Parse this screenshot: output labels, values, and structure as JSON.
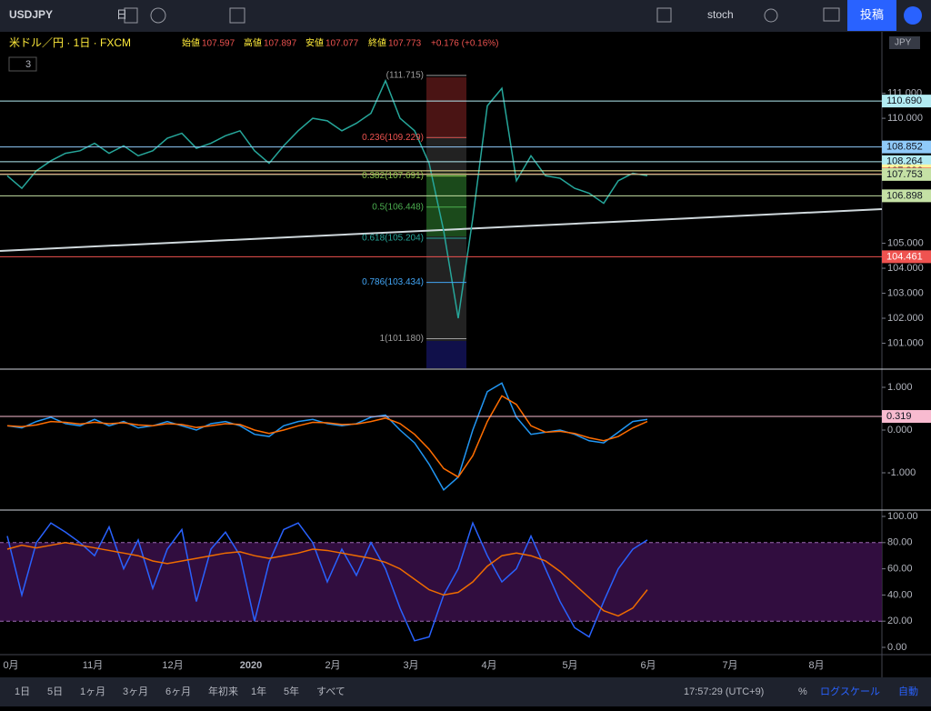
{
  "toolbar": {
    "symbol": "USDJPY",
    "interval": "日",
    "indicator": "stoch",
    "publish": "投稿"
  },
  "legend": {
    "title": "米ドル／円 · 1日 · FXCM",
    "open_label": "始値",
    "open": "107.597",
    "high_label": "高値",
    "high": "107.897",
    "low_label": "安値",
    "low": "107.077",
    "close_label": "終値",
    "close": "107.773",
    "change": "+0.176 (+0.16%)",
    "count": "3",
    "currency": "JPY"
  },
  "price_pane": {
    "ylim": [
      100,
      113.35
    ],
    "yticks": [
      {
        "value": 101,
        "label": "101.000"
      },
      {
        "value": 102,
        "label": "102.000"
      },
      {
        "value": 103,
        "label": "103.000"
      },
      {
        "value": 104,
        "label": "104.000"
      },
      {
        "value": 105,
        "label": "105.000"
      },
      {
        "value": 110,
        "label": "110.000"
      },
      {
        "value": 111,
        "label": "111.000"
      }
    ],
    "price_labels": [
      {
        "value": 110.69,
        "label": "110.690",
        "color": "#b2ebf2"
      },
      {
        "value": 108.852,
        "label": "108.852",
        "color": "#90caf9"
      },
      {
        "value": 108.264,
        "label": "108.264",
        "color": "#b2ebf2"
      },
      {
        "value": 107.896,
        "label": "107.896",
        "color": "#fff59d"
      },
      {
        "value": 107.773,
        "label": "107.773",
        "color": "#ef5350"
      },
      {
        "value": 107.753,
        "label": "107.753",
        "color": "#c5e1a5"
      },
      {
        "value": 106.898,
        "label": "106.898",
        "color": "#c5e1a5"
      },
      {
        "value": 104.461,
        "label": "104.461",
        "color": "#ef5350"
      }
    ],
    "fib": [
      {
        "value": 111.715,
        "label": "(111.715)",
        "color": "#9e9e9e"
      },
      {
        "value": 109.229,
        "label": "0.236(109.229)",
        "color": "#ef5350"
      },
      {
        "value": 107.691,
        "label": "0.382(107.691)",
        "color": "#8bc34a"
      },
      {
        "value": 106.448,
        "label": "0.5(106.448)",
        "color": "#4caf50"
      },
      {
        "value": 105.204,
        "label": "0.618(105.204)",
        "color": "#26a69a"
      },
      {
        "value": 103.434,
        "label": "0.786(103.434)",
        "color": "#42a5f5"
      },
      {
        "value": 101.18,
        "label": "1(101.180)",
        "color": "#9e9e9e"
      }
    ],
    "series": [
      {
        "name": "USDJPY",
        "color": "#26a69a",
        "values": [
          107.7,
          107.2,
          107.9,
          108.3,
          108.6,
          108.7,
          109.0,
          108.6,
          108.9,
          108.5,
          108.7,
          109.2,
          109.4,
          108.8,
          109.0,
          109.3,
          109.5,
          108.7,
          108.2,
          108.9,
          109.5,
          110.0,
          109.9,
          109.5,
          109.8,
          110.2,
          111.5,
          110.0,
          109.5,
          108.2,
          105.5,
          102.0,
          106.0,
          110.5,
          111.2,
          107.5,
          108.5,
          107.7,
          107.6,
          107.2,
          107.0,
          106.6,
          107.5,
          107.8,
          107.7
        ]
      }
    ]
  },
  "macd_pane": {
    "ylim": [
      -1.851,
      1.383
    ],
    "yticks": [
      {
        "value": 1,
        "label": "1.000"
      },
      {
        "value": 0,
        "label": "0.000"
      },
      {
        "value": -1,
        "label": "-1.000"
      }
    ],
    "price_label": {
      "value": 0.319,
      "label": "0.319"
    },
    "series": [
      {
        "name": "MACD",
        "color": "#2196f3",
        "values": [
          0.1,
          0.05,
          0.2,
          0.3,
          0.15,
          0.1,
          0.25,
          0.1,
          0.2,
          0.05,
          0.1,
          0.2,
          0.1,
          0.0,
          0.15,
          0.2,
          0.1,
          -0.1,
          -0.15,
          0.1,
          0.2,
          0.25,
          0.15,
          0.1,
          0.15,
          0.3,
          0.35,
          0.0,
          -0.3,
          -0.8,
          -1.4,
          -1.1,
          0.0,
          0.9,
          1.1,
          0.3,
          -0.1,
          -0.05,
          0.0,
          -0.1,
          -0.25,
          -0.3,
          -0.05,
          0.2,
          0.25
        ]
      },
      {
        "name": "Signal",
        "color": "#ff6d00",
        "values": [
          0.1,
          0.08,
          0.12,
          0.2,
          0.18,
          0.14,
          0.18,
          0.15,
          0.17,
          0.12,
          0.1,
          0.15,
          0.13,
          0.06,
          0.1,
          0.15,
          0.13,
          0.0,
          -0.08,
          0.0,
          0.1,
          0.18,
          0.17,
          0.13,
          0.14,
          0.2,
          0.28,
          0.15,
          -0.1,
          -0.45,
          -0.9,
          -1.1,
          -0.6,
          0.2,
          0.8,
          0.6,
          0.1,
          -0.05,
          -0.03,
          -0.08,
          -0.18,
          -0.25,
          -0.15,
          0.05,
          0.2
        ]
      }
    ]
  },
  "stoch_pane": {
    "ylim": [
      -5.56,
      104.17
    ],
    "yticks": [
      {
        "value": 100,
        "label": "100.00"
      },
      {
        "value": 80,
        "label": "80.00"
      },
      {
        "value": 60,
        "label": "60.00"
      },
      {
        "value": 40,
        "label": "40.00"
      },
      {
        "value": 20,
        "label": "20.00"
      },
      {
        "value": 0,
        "label": "0.00"
      }
    ],
    "band": [
      20,
      80
    ],
    "series": [
      {
        "name": "RSI",
        "color": "#2962ff",
        "values": [
          85,
          40,
          80,
          95,
          88,
          80,
          70,
          92,
          60,
          82,
          45,
          75,
          90,
          35,
          75,
          88,
          70,
          20,
          65,
          90,
          95,
          80,
          50,
          75,
          55,
          80,
          60,
          30,
          5,
          8,
          40,
          60,
          95,
          70,
          50,
          60,
          85,
          60,
          35,
          15,
          8,
          35,
          60,
          75,
          82
        ]
      },
      {
        "name": "MA",
        "color": "#ef6c00",
        "values": [
          75,
          78,
          76,
          78,
          80,
          78,
          76,
          74,
          72,
          70,
          66,
          64,
          66,
          68,
          70,
          72,
          73,
          70,
          68,
          70,
          72,
          75,
          74,
          72,
          70,
          68,
          65,
          60,
          52,
          44,
          40,
          42,
          50,
          62,
          70,
          72,
          70,
          66,
          58,
          48,
          38,
          28,
          24,
          30,
          44
        ]
      }
    ]
  },
  "time_axis": {
    "labels": [
      "0月",
      "11月",
      "12月",
      "2020",
      "2月",
      "3月",
      "4月",
      "5月",
      "6月",
      "7月",
      "8月"
    ]
  },
  "bottom_bar": {
    "ranges": [
      "1日",
      "5日",
      "1ヶ月",
      "3ヶ月",
      "6ヶ月",
      "年初来",
      "1年",
      "5年",
      "すべて"
    ],
    "time": "17:57:29 (UTC+9)",
    "percent": "%",
    "log": "ログスケール",
    "auto": "自動"
  }
}
